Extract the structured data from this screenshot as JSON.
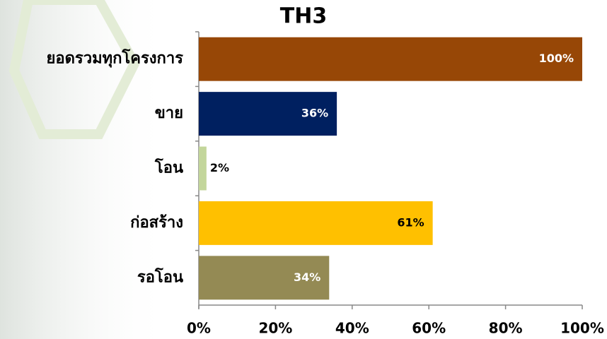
{
  "chart_data": {
    "type": "bar",
    "orientation": "horizontal",
    "title": "TH3",
    "categories": [
      "ยอดรวมทุกโครงการ",
      "ขาย",
      "โอน",
      "ก่อสร้าง",
      "รอโอน"
    ],
    "values": [
      100,
      36,
      2,
      61,
      34
    ],
    "value_labels": [
      "100%",
      "36%",
      "2%",
      "61%",
      "34%"
    ],
    "colors": [
      "#974706",
      "#002060",
      "#c3d69b",
      "#ffc000",
      "#948a54"
    ],
    "xlim": [
      0,
      100
    ],
    "xticks": [
      {
        "value": 0,
        "label": "0%"
      },
      {
        "value": 20,
        "label": "20%"
      },
      {
        "value": 40,
        "label": "40%"
      },
      {
        "value": 60,
        "label": "60%"
      },
      {
        "value": 80,
        "label": "80%"
      },
      {
        "value": 100,
        "label": "100%"
      }
    ],
    "grid": false
  }
}
